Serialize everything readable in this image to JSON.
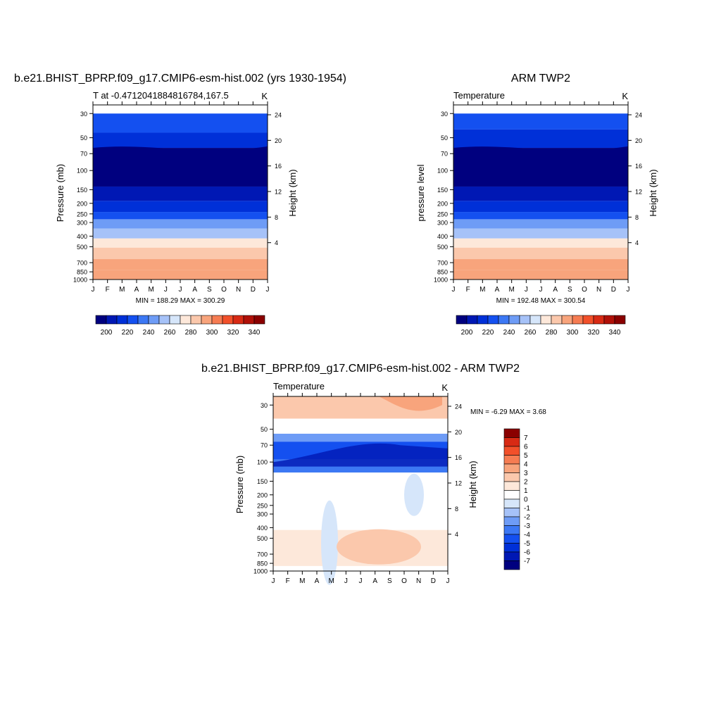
{
  "months": [
    "J",
    "F",
    "M",
    "A",
    "M",
    "J",
    "J",
    "A",
    "S",
    "O",
    "N",
    "D",
    "J"
  ],
  "pressure_ticks": [
    30,
    50,
    70,
    100,
    150,
    200,
    250,
    300,
    400,
    500,
    700,
    850,
    1000
  ],
  "height_ticks": [
    24,
    20,
    16,
    12,
    8,
    4
  ],
  "panels": [
    {
      "main_title": "b.e21.BHIST_BPRP.f09_g17.CMIP6-esm-hist.002 (yrs 1930-1954)",
      "left_string": "T at -0.4712041884816784,167.5",
      "right_string": "K",
      "ylabel": "Pressure (mb)",
      "ylabel_right": "Height (km)",
      "stats": "MIN = 188.29 MAX = 300.29",
      "colorbar_labels": [
        "200",
        "220",
        "240",
        "260",
        "280",
        "300",
        "320",
        "340"
      ]
    },
    {
      "main_title": "ARM TWP2",
      "left_string": "Temperature",
      "right_string": "K",
      "ylabel": "pressure level",
      "ylabel_right": "Height (km)",
      "stats": "MIN = 192.48 MAX = 300.54",
      "colorbar_labels": [
        "200",
        "220",
        "240",
        "260",
        "280",
        "300",
        "320",
        "340"
      ]
    },
    {
      "main_title": "b.e21.BHIST_BPRP.f09_g17.CMIP6-esm-hist.002 - ARM TWP2",
      "left_string": "Temperature",
      "right_string": "K",
      "ylabel": "Pressure (mb)",
      "ylabel_right": "Height (km)",
      "stats": "MIN =  -6.29 MAX =   3.68",
      "colorbar_labels": [
        "7",
        "6",
        "5",
        "4",
        "3",
        "2",
        "1",
        "0",
        "-1",
        "-2",
        "-3",
        "-4",
        "-5",
        "-6",
        "-7"
      ]
    }
  ],
  "chart_data": [
    {
      "type": "heatmap",
      "x": [
        "J",
        "F",
        "M",
        "A",
        "M",
        "J",
        "J",
        "A",
        "S",
        "O",
        "N",
        "D",
        "J"
      ],
      "y_pressure_mb": [
        30,
        50,
        70,
        100,
        150,
        200,
        250,
        300,
        400,
        500,
        700,
        850,
        1000
      ],
      "z_description_levels": [
        200,
        220,
        240,
        260,
        280,
        300,
        320,
        340
      ],
      "bands": [
        {
          "from": 30,
          "to": 45,
          "value": 220
        },
        {
          "from": 45,
          "to": 62,
          "value": 210
        },
        {
          "from": 62,
          "to": 140,
          "value": 195
        },
        {
          "from": 140,
          "to": 190,
          "value": 205
        },
        {
          "from": 190,
          "to": 240,
          "value": 215
        },
        {
          "from": 240,
          "to": 280,
          "value": 225
        },
        {
          "from": 280,
          "to": 340,
          "value": 240
        },
        {
          "from": 340,
          "to": 420,
          "value": 255
        },
        {
          "from": 420,
          "to": 510,
          "value": 270
        },
        {
          "from": 510,
          "to": 650,
          "value": 285
        },
        {
          "from": 650,
          "to": 820,
          "value": 292
        },
        {
          "from": 820,
          "to": 1000,
          "value": 298
        }
      ]
    },
    {
      "type": "heatmap",
      "x": [
        "J",
        "F",
        "M",
        "A",
        "M",
        "J",
        "J",
        "A",
        "S",
        "O",
        "N",
        "D",
        "J"
      ],
      "y_pressure_mb": [
        30,
        50,
        70,
        100,
        150,
        200,
        250,
        300,
        400,
        500,
        700,
        850,
        1000
      ],
      "z_description_levels": [
        200,
        220,
        240,
        260,
        280,
        300,
        320,
        340
      ],
      "bands": [
        {
          "from": 30,
          "to": 42,
          "value": 220
        },
        {
          "from": 42,
          "to": 62,
          "value": 210
        },
        {
          "from": 62,
          "to": 140,
          "value": 195
        },
        {
          "from": 140,
          "to": 190,
          "value": 205
        },
        {
          "from": 190,
          "to": 240,
          "value": 215
        },
        {
          "from": 240,
          "to": 280,
          "value": 225
        },
        {
          "from": 280,
          "to": 340,
          "value": 240
        },
        {
          "from": 340,
          "to": 420,
          "value": 255
        },
        {
          "from": 420,
          "to": 510,
          "value": 270
        },
        {
          "from": 510,
          "to": 650,
          "value": 285
        },
        {
          "from": 650,
          "to": 820,
          "value": 292
        },
        {
          "from": 820,
          "to": 1000,
          "value": 298
        }
      ]
    },
    {
      "type": "heatmap",
      "x": [
        "J",
        "F",
        "M",
        "A",
        "M",
        "J",
        "J",
        "A",
        "S",
        "O",
        "N",
        "D",
        "J"
      ],
      "y_pressure_mb": [
        30,
        50,
        70,
        100,
        150,
        200,
        250,
        300,
        400,
        500,
        700,
        850,
        1000
      ],
      "z_levels": [
        -7,
        -6,
        -5,
        -4,
        -3,
        -2,
        -1,
        0,
        1,
        2,
        3,
        4,
        5,
        6,
        7
      ],
      "bands": [
        {
          "from": 25,
          "to": 40,
          "value": 2.5
        },
        {
          "from": 40,
          "to": 55,
          "value": 0.5
        },
        {
          "from": 55,
          "to": 65,
          "value": -2.5
        },
        {
          "from": 65,
          "to": 95,
          "value": -5.0
        },
        {
          "from": 95,
          "to": 125,
          "value": -3.5
        },
        {
          "from": 125,
          "to": 420,
          "value": 0.5
        },
        {
          "from": 420,
          "to": 900,
          "value": 1.5
        },
        {
          "from": 900,
          "to": 1000,
          "value": 0.5
        }
      ]
    }
  ],
  "colors": {
    "temperature_scale": [
      "#00007f",
      "#0018b4",
      "#0030d8",
      "#1450f0",
      "#3c78f4",
      "#6e9cf6",
      "#a6c2f8",
      "#d6e6fa",
      "#fde8da",
      "#fbc8ac",
      "#f8a47c",
      "#f67c52",
      "#f2502a",
      "#d82a14",
      "#b01008",
      "#8a0000"
    ],
    "difference_scale": [
      "#00007f",
      "#0018b4",
      "#0030d8",
      "#1450f0",
      "#3c78f4",
      "#6e9cf6",
      "#a6c2f8",
      "#d6e6fa",
      "#ffffff",
      "#fde8da",
      "#fbc8ac",
      "#f8a47c",
      "#f67c52",
      "#f2502a",
      "#d82a14",
      "#8a0000"
    ]
  }
}
